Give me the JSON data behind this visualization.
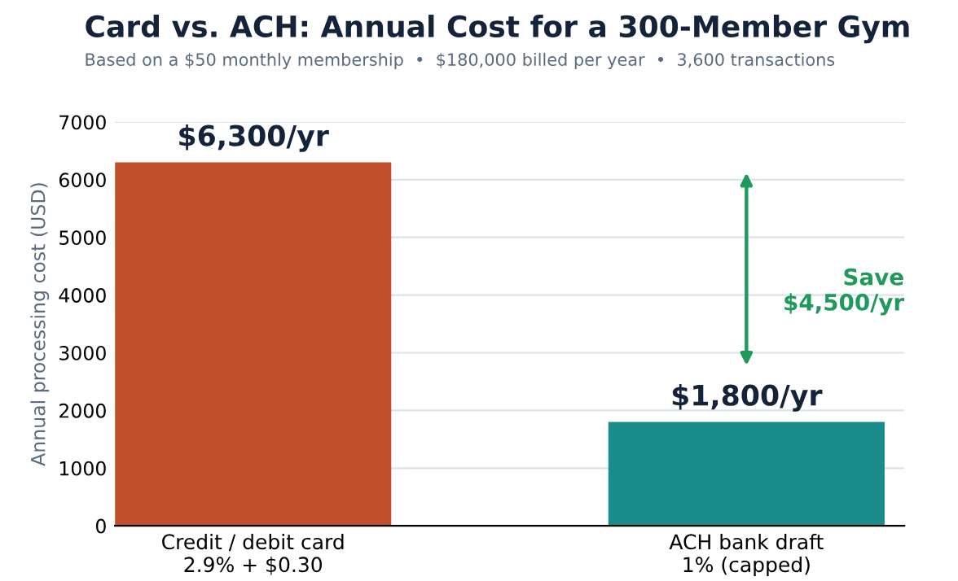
{
  "chart_data": {
    "type": "bar",
    "title": "Card vs. ACH: Annual Cost for a 300-Member Gym",
    "subtitle": "Based on a $50 monthly membership  •  $180,000 billed per year  •  3,600 transactions",
    "ylabel": "Annual processing cost (USD)",
    "categories": [
      "Credit / debit card\n2.9% + $0.30",
      "ACH bank draft\n1% (capped)"
    ],
    "values": [
      6300,
      1800
    ],
    "colors": [
      "#c0502b",
      "#1a8c8c"
    ],
    "value_labels": [
      "$6,300/yr",
      "$1,800/yr"
    ],
    "annotations": [
      "Save\n$4,500/yr"
    ],
    "ylim": [
      0,
      7000
    ],
    "yticks": [
      0,
      1000,
      2000,
      3000,
      4000,
      5000,
      6000,
      7000
    ],
    "grid": "y"
  }
}
